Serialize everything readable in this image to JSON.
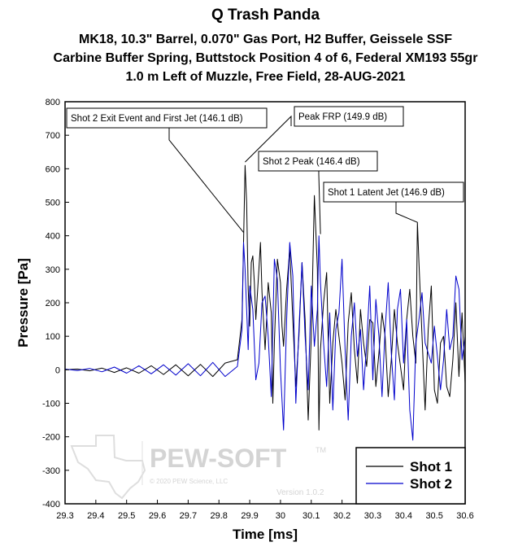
{
  "chart_data": {
    "type": "line",
    "title": "Q Trash Panda",
    "subtitle_lines": [
      "MK18, 10.3\" Barrel, 0.070\" Gas Port, H2 Buffer, Geissele SSF",
      "Carbine Buffer Spring, Buttstock Position 4 of 6, Federal XM193 55gr",
      "1.0 m Left of Muzzle, Free Field, 28-AUG-2021"
    ],
    "xlabel": "Time [ms]",
    "ylabel": "Pressure [Pa]",
    "xlim": [
      29.3,
      30.6
    ],
    "ylim": [
      -400,
      800
    ],
    "xticks": [
      "29.3",
      "29.4",
      "29.5",
      "29.6",
      "29.7",
      "29.8",
      "29.9",
      "30",
      "30.1",
      "30.2",
      "30.3",
      "30.4",
      "30.5",
      "30.6"
    ],
    "yticks": [
      "800",
      "700",
      "600",
      "500",
      "400",
      "300",
      "200",
      "100",
      "0",
      "-100",
      "-200",
      "-300",
      "-400"
    ],
    "grid": false,
    "legend_position": "bottom-right",
    "series": [
      {
        "name": "Shot 1",
        "color": "#000000",
        "x": [
          29.3,
          29.34,
          29.38,
          29.42,
          29.46,
          29.5,
          29.54,
          29.58,
          29.62,
          29.66,
          29.7,
          29.74,
          29.78,
          29.82,
          29.86,
          29.875,
          29.88,
          29.885,
          29.89,
          29.895,
          29.9,
          29.905,
          29.91,
          29.915,
          29.92,
          29.93,
          29.935,
          29.94,
          29.95,
          29.955,
          29.96,
          29.97,
          29.975,
          29.98,
          29.99,
          30.0,
          30.005,
          30.01,
          30.02,
          30.03,
          30.04,
          30.05,
          30.06,
          30.07,
          30.08,
          30.09,
          30.1,
          30.11,
          30.12,
          30.125,
          30.13,
          30.14,
          30.15,
          30.16,
          30.17,
          30.18,
          30.19,
          30.2,
          30.21,
          30.22,
          30.23,
          30.24,
          30.25,
          30.26,
          30.27,
          30.28,
          30.29,
          30.3,
          30.31,
          30.32,
          30.33,
          30.34,
          30.35,
          30.36,
          30.37,
          30.38,
          30.39,
          30.4,
          30.41,
          30.42,
          30.43,
          30.44,
          30.445,
          30.45,
          30.46,
          30.47,
          30.48,
          30.49,
          30.5,
          30.51,
          30.52,
          30.53,
          30.54,
          30.55,
          30.56,
          30.57,
          30.58,
          30.59,
          30.6
        ],
        "y": [
          0,
          2,
          -3,
          5,
          -8,
          6,
          -10,
          12,
          -14,
          15,
          -18,
          16,
          -20,
          20,
          30,
          150,
          380,
          610,
          500,
          240,
          130,
          320,
          340,
          260,
          150,
          300,
          380,
          230,
          60,
          150,
          260,
          170,
          -100,
          80,
          330,
          260,
          130,
          70,
          240,
          360,
          150,
          -50,
          100,
          320,
          150,
          -150,
          100,
          520,
          300,
          -180,
          60,
          200,
          290,
          -100,
          80,
          180,
          100,
          20,
          -90,
          140,
          230,
          60,
          -40,
          180,
          80,
          10,
          150,
          140,
          -50,
          50,
          170,
          100,
          -80,
          30,
          180,
          80,
          10,
          -60,
          150,
          240,
          100,
          20,
          440,
          320,
          100,
          -120,
          120,
          250,
          -60,
          -100,
          80,
          100,
          -50,
          -80,
          30,
          200,
          -20,
          170,
          -40
        ]
      },
      {
        "name": "Shot 2",
        "color": "#0000cc",
        "x": [
          29.3,
          29.34,
          29.38,
          29.42,
          29.46,
          29.5,
          29.54,
          29.58,
          29.62,
          29.66,
          29.7,
          29.74,
          29.78,
          29.82,
          29.86,
          29.875,
          29.88,
          29.885,
          29.89,
          29.895,
          29.9,
          29.91,
          29.92,
          29.93,
          29.94,
          29.95,
          29.96,
          29.97,
          29.98,
          29.99,
          30.0,
          30.01,
          30.02,
          30.03,
          30.04,
          30.05,
          30.06,
          30.07,
          30.08,
          30.09,
          30.1,
          30.11,
          30.12,
          30.125,
          30.13,
          30.14,
          30.15,
          30.16,
          30.17,
          30.18,
          30.19,
          30.2,
          30.21,
          30.22,
          30.23,
          30.24,
          30.25,
          30.26,
          30.27,
          30.28,
          30.29,
          30.3,
          30.31,
          30.32,
          30.33,
          30.34,
          30.35,
          30.36,
          30.37,
          30.38,
          30.39,
          30.4,
          30.41,
          30.42,
          30.43,
          30.44,
          30.45,
          30.46,
          30.47,
          30.48,
          30.49,
          30.5,
          30.51,
          30.52,
          30.53,
          30.54,
          30.55,
          30.56,
          30.57,
          30.58,
          30.59,
          30.6
        ],
        "y": [
          2,
          -2,
          4,
          -6,
          8,
          -10,
          12,
          -12,
          15,
          -16,
          18,
          -18,
          22,
          -20,
          10,
          120,
          380,
          300,
          180,
          60,
          250,
          180,
          -30,
          20,
          200,
          220,
          100,
          -80,
          330,
          270,
          0,
          -180,
          150,
          380,
          280,
          -100,
          120,
          320,
          100,
          -60,
          250,
          70,
          180,
          400,
          260,
          80,
          -50,
          170,
          -120,
          120,
          170,
          330,
          60,
          -150,
          100,
          200,
          40,
          120,
          -60,
          80,
          250,
          -30,
          210,
          100,
          -80,
          120,
          260,
          50,
          -90,
          180,
          240,
          20,
          150,
          -120,
          -210,
          80,
          150,
          230,
          80,
          50,
          20,
          130,
          40,
          -60,
          30,
          180,
          60,
          100,
          280,
          240,
          30,
          100
        ]
      }
    ],
    "annotations": [
      {
        "label": "Shot 2 Exit Event and First Jet (146.1 dB)",
        "x": 29.88,
        "y": 410
      },
      {
        "label": "Peak FRP (149.9 dB)",
        "x": 29.885,
        "y": 620
      },
      {
        "label": "Shot 2 Peak (146.4 dB)",
        "x": 30.13,
        "y": 405
      },
      {
        "label": "Shot 1 Latent Jet (146.9 dB)",
        "x": 30.445,
        "y": 440
      }
    ],
    "watermark": {
      "brand": "PEW-SOFT",
      "mark": "TM",
      "copyright": "© 2020 PEW Science, LLC",
      "version": "Version 1.0.2"
    }
  }
}
